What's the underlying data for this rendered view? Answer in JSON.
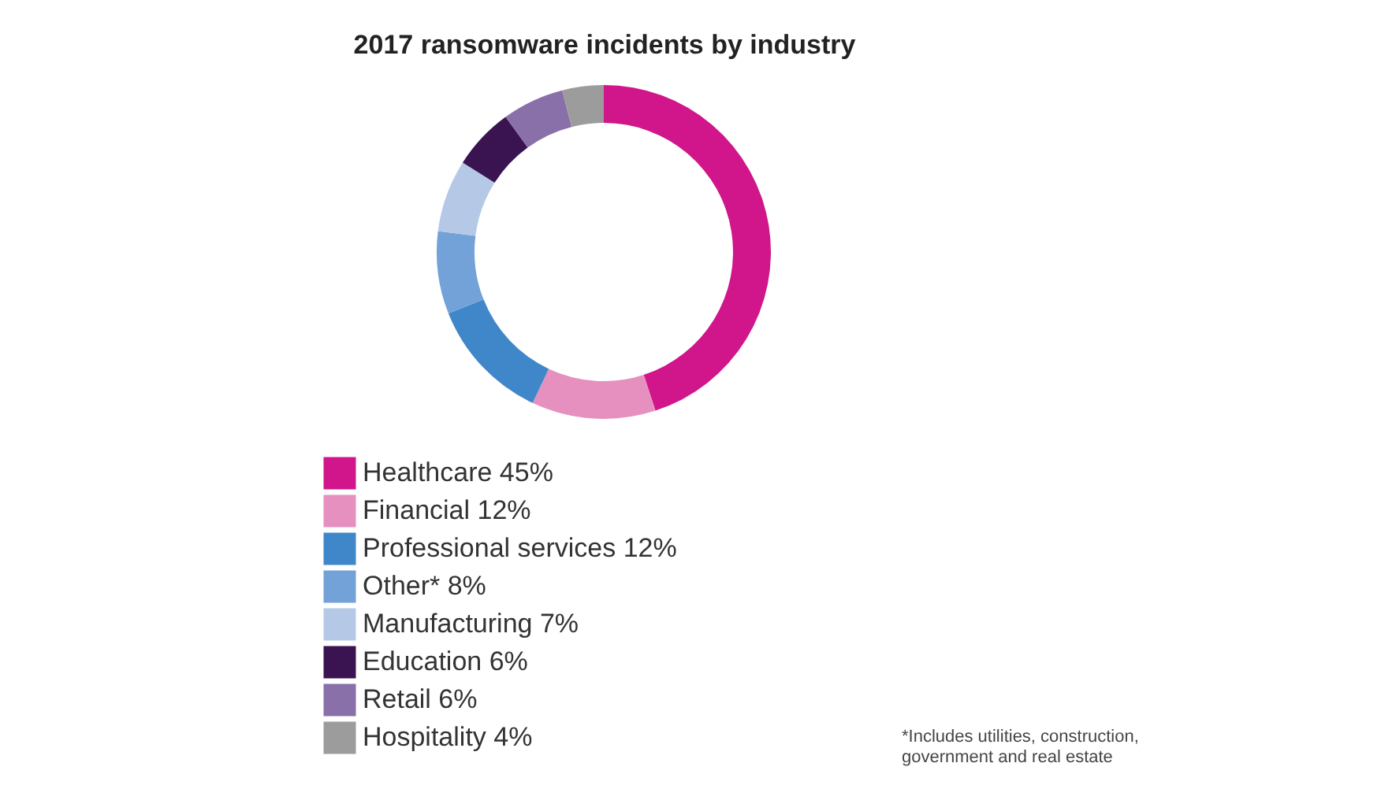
{
  "chart_data": {
    "type": "donut",
    "title": "2017 ransomware incidents by industry",
    "categories": [
      "Healthcare 45%",
      "Financial 12%",
      "Professional services 12%",
      "Other* 8%",
      "Manufacturing 7%",
      "Education 6%",
      "Retail 6%",
      "Hospitality 4%"
    ],
    "values": [
      45,
      12,
      12,
      8,
      7,
      6,
      6,
      4
    ],
    "colors": [
      "#d0168a",
      "#e690bf",
      "#3f87c9",
      "#72a2d8",
      "#b5c9e7",
      "#3a1450",
      "#8a70a8",
      "#9c9c9c"
    ],
    "legend": "bottom left",
    "annotations": [
      "*Includes utilities, construction, government and real estate"
    ]
  }
}
